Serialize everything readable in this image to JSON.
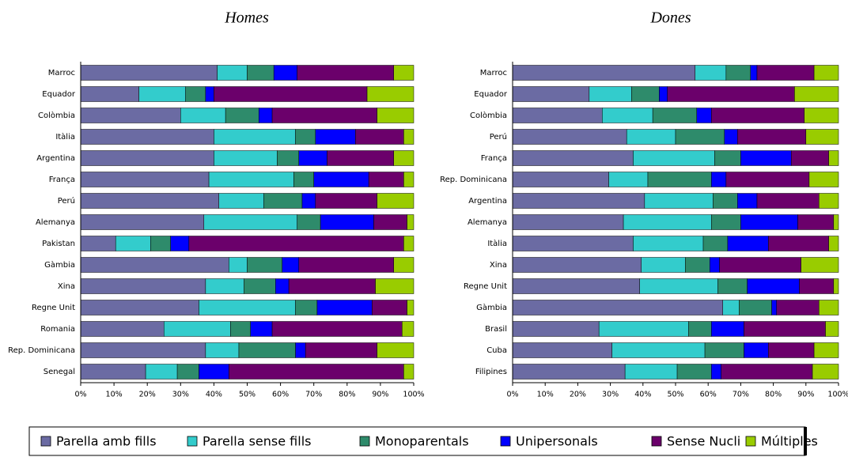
{
  "chart_data": [
    {
      "type": "hbar-stacked",
      "title": "Homes",
      "categories": [
        "Marroc",
        "Equador",
        "Colòmbia",
        "Itàlia",
        "Argentina",
        "França",
        "Perú",
        "Alemanya",
        "Pakistan",
        "Gàmbia",
        "Xina",
        "Regne Unit",
        "Romania",
        "Rep. Dominicana",
        "Senegal"
      ],
      "series": [
        {
          "name": "Parella amb fills",
          "color": "#6b6ba3",
          "values": [
            41,
            17.5,
            30,
            40,
            40,
            38.5,
            41.5,
            37,
            10.5,
            44.5,
            37.5,
            35.5,
            25,
            37.5,
            19.5
          ]
        },
        {
          "name": "Parella sense fills",
          "color": "#33cccc",
          "values": [
            9,
            14,
            13.5,
            24.5,
            19,
            25.5,
            13.5,
            28,
            10.5,
            5.5,
            11.5,
            29,
            20,
            10,
            9.5
          ]
        },
        {
          "name": "Monoparentals",
          "color": "#2e8b6b",
          "values": [
            8,
            6,
            10,
            6,
            6.5,
            6,
            11.5,
            7,
            6,
            10.5,
            9.5,
            6.5,
            6,
            17,
            6.5
          ]
        },
        {
          "name": "Unipersonals",
          "color": "#0000ff",
          "values": [
            7,
            2.5,
            4,
            12,
            8.5,
            16.5,
            4,
            16,
            5.5,
            5,
            4,
            16.5,
            6.5,
            3,
            9
          ]
        },
        {
          "name": "Sense Nucli",
          "color": "#6b006b",
          "values": [
            29,
            46,
            31.5,
            14.5,
            20,
            10.5,
            18.5,
            10,
            64.5,
            28.5,
            26,
            10.5,
            39,
            21.5,
            52.5
          ]
        },
        {
          "name": "Múltiples",
          "color": "#99cc00",
          "values": [
            6,
            14,
            11,
            3,
            6,
            3,
            11,
            2,
            3,
            6,
            11.5,
            2,
            3.5,
            11,
            3
          ]
        }
      ],
      "xlim": [
        0,
        100
      ],
      "xticks": [
        {
          "value": 0,
          "label": "0%"
        },
        {
          "value": 10,
          "label": "10%"
        },
        {
          "value": 20,
          "label": "20%"
        },
        {
          "value": 30,
          "label": "30%"
        },
        {
          "value": 40,
          "label": "40%"
        },
        {
          "value": 50,
          "label": "50%"
        },
        {
          "value": 60,
          "label": "60%"
        },
        {
          "value": 70,
          "label": "70%"
        },
        {
          "value": 80,
          "label": "80%"
        },
        {
          "value": 90,
          "label": "90%"
        },
        {
          "value": 100,
          "label": "100%"
        }
      ]
    },
    {
      "type": "hbar-stacked",
      "title": "Dones",
      "categories": [
        "Marroc",
        "Equador",
        "Colòmbia",
        "Perú",
        "França",
        "Rep. Dominicana",
        "Argentina",
        "Alemanya",
        "Itàlia",
        "Xina",
        "Regne Unit",
        "Gàmbia",
        "Brasil",
        "Cuba",
        "Filipines"
      ],
      "series": [
        {
          "values": [
            56,
            23.5,
            27.5,
            35,
            37,
            29.5,
            40.5,
            34,
            37,
            39.5,
            39,
            64.5,
            26.5,
            30.5,
            34.5
          ]
        },
        {
          "values": [
            9.5,
            13,
            15.5,
            15,
            25,
            12,
            21,
            27,
            21.5,
            13.5,
            24,
            5,
            27.5,
            28.5,
            16
          ]
        },
        {
          "values": [
            7.5,
            8.5,
            13.5,
            15,
            8,
            19.5,
            7.5,
            9,
            7.5,
            7.5,
            9,
            10,
            7,
            12,
            10.5
          ]
        },
        {
          "values": [
            2,
            2.5,
            4.5,
            4,
            15.5,
            4.5,
            6,
            17.5,
            12.5,
            3,
            16,
            1.5,
            10,
            7.5,
            3
          ]
        },
        {
          "values": [
            17.5,
            39,
            28.5,
            21,
            11.5,
            25.5,
            19,
            11,
            18.5,
            25,
            10.5,
            13,
            25,
            14,
            28
          ]
        },
        {
          "values": [
            7.5,
            13.5,
            10.5,
            10,
            3,
            9,
            6,
            1.5,
            3,
            11.5,
            1.5,
            6,
            4,
            7.5,
            8
          ]
        }
      ],
      "xlim": [
        0,
        100
      ],
      "xticks": [
        {
          "value": 0,
          "label": "0%"
        },
        {
          "value": 10,
          "label": "10%"
        },
        {
          "value": 20,
          "label": "20%"
        },
        {
          "value": 30,
          "label": "30%"
        },
        {
          "value": 40,
          "label": "40%"
        },
        {
          "value": 50,
          "label": "50%"
        },
        {
          "value": 60,
          "label": "60%"
        },
        {
          "value": 70,
          "label": "70%"
        },
        {
          "value": 80,
          "label": "80%"
        },
        {
          "value": 90,
          "label": "90%"
        },
        {
          "value": 100,
          "label": "100%"
        }
      ]
    }
  ]
}
